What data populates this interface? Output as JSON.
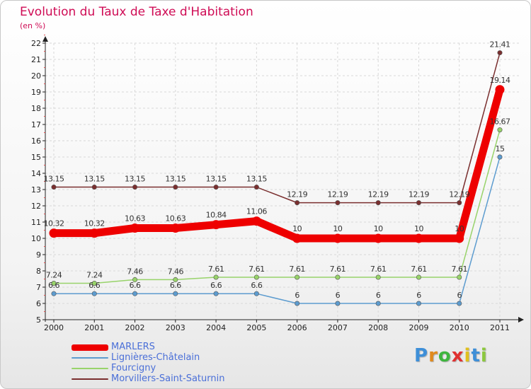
{
  "chart_data": {
    "type": "line",
    "title": "Evolution du Taux de Taxe d'Habitation",
    "subtitle": "(en %)",
    "xlabel": "",
    "ylabel": "",
    "ylim": [
      5,
      22
    ],
    "categories": [
      "2000",
      "2001",
      "2002",
      "2003",
      "2004",
      "2005",
      "2006",
      "2007",
      "2008",
      "2009",
      "2010",
      "2011"
    ],
    "series": [
      {
        "name": "MARLERS",
        "color": "#ee0000",
        "values": [
          10.32,
          10.32,
          10.63,
          10.63,
          10.84,
          11.06,
          10,
          10,
          10,
          10,
          10,
          19.14
        ],
        "labels": [
          "10.32",
          "10.32",
          "10.63",
          "10.63",
          "10.84",
          "11.06",
          "10",
          "10",
          "10",
          "10",
          "10",
          "19.14"
        ]
      },
      {
        "name": "Lignières-Châtelain",
        "color": "#5d9ccf",
        "values": [
          6.6,
          6.6,
          6.6,
          6.6,
          6.6,
          6.6,
          6,
          6,
          6,
          6,
          6,
          15
        ],
        "labels": [
          "6.6",
          "6.6",
          "6.6",
          "6.6",
          "6.6",
          "6.6",
          "6",
          "6",
          "6",
          "6",
          "6",
          "15"
        ]
      },
      {
        "name": "Fourcigny",
        "color": "#98d36a",
        "values": [
          7.24,
          7.24,
          7.46,
          7.46,
          7.61,
          7.61,
          7.61,
          7.61,
          7.61,
          7.61,
          7.61,
          16.67
        ],
        "labels": [
          "7.24",
          "7.24",
          "7.46",
          "7.46",
          "7.61",
          "7.61",
          "7.61",
          "7.61",
          "7.61",
          "7.61",
          "7.61",
          "16.67"
        ]
      },
      {
        "name": "Morvillers-Saint-Saturnin",
        "color": "#7a2f2f",
        "values": [
          13.15,
          13.15,
          13.15,
          13.15,
          13.15,
          13.15,
          12.19,
          12.19,
          12.19,
          12.19,
          12.19,
          21.41
        ],
        "labels": [
          "13.15",
          "13.15",
          "13.15",
          "13.15",
          "13.15",
          "13.15",
          "12.19",
          "12.19",
          "12.19",
          "12.19",
          "12.19",
          "21.41"
        ]
      }
    ]
  },
  "logo": {
    "letters": [
      "P",
      "r",
      "o",
      "x",
      "i",
      "t",
      "i"
    ],
    "colors": [
      "#3e8fd8",
      "#e08a1e",
      "#3eb53e",
      "#e03030",
      "#e0c01e",
      "#3e8fd8",
      "#8cc83e"
    ]
  }
}
